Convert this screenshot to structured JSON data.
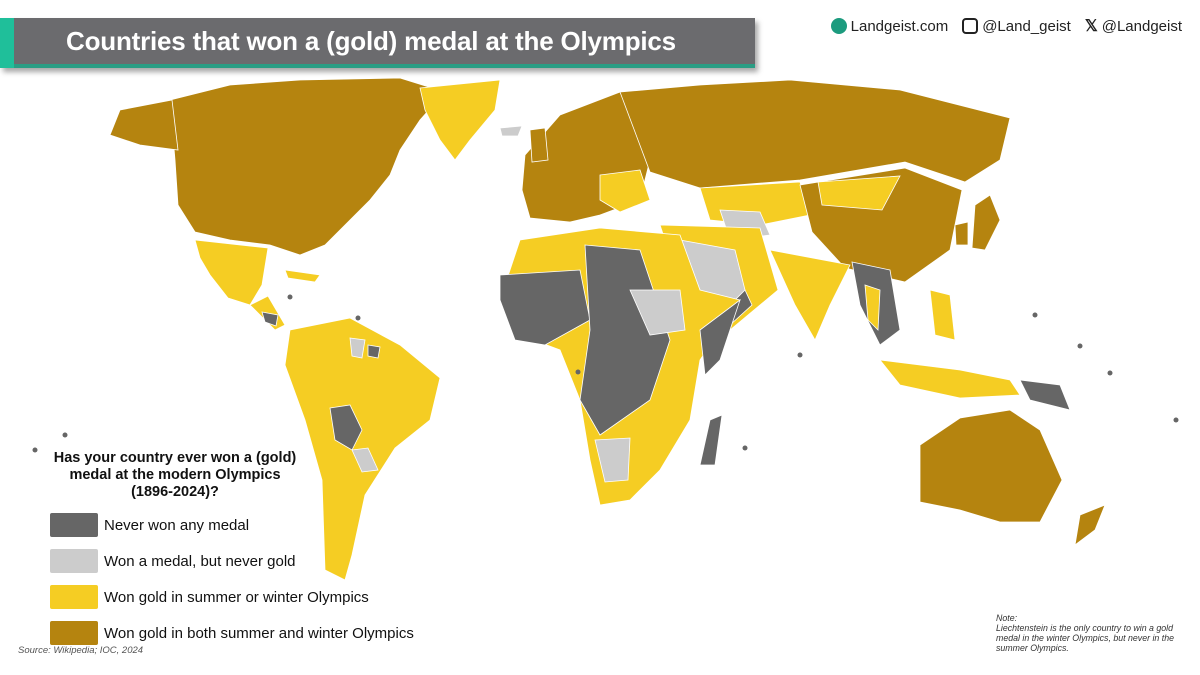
{
  "header": {
    "title": "Countries that won a (gold) medal at the Olympics"
  },
  "social": {
    "website": "Landgeist.com",
    "instagram": "@Land_geist",
    "x": "@Landgeist",
    "icons": [
      "globe-icon",
      "instagram-icon",
      "x-icon"
    ]
  },
  "legend": {
    "title": "Has your country ever won a (gold) medal at the modern Olympics (1896-2024)?",
    "items": [
      {
        "label": "Never won any medal",
        "color": "#666666"
      },
      {
        "label": "Won a medal, but never gold",
        "color": "#cccccc"
      },
      {
        "label": "Won gold in summer or winter Olympics",
        "color": "#f5cd23"
      },
      {
        "label": "Won gold in both summer and winter Olympics",
        "color": "#b5840f"
      }
    ]
  },
  "source": "Source: Wikipedia; IOC, 2024",
  "note": {
    "heading": "Note:",
    "text": "Liechtenstein is the only country to win a gold medal in the winter Olympics, but never in the summer Olympics."
  }
}
